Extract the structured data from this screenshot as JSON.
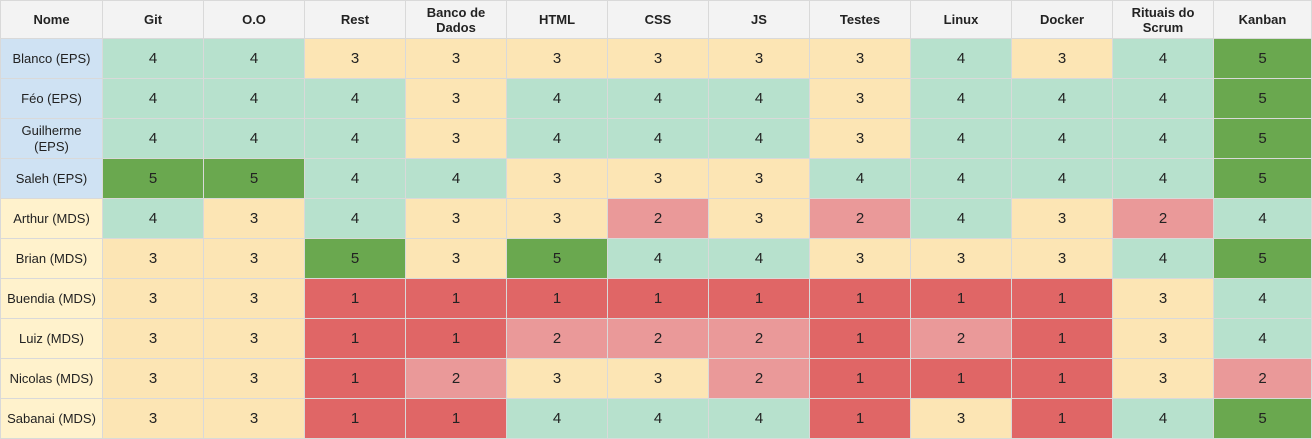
{
  "headers": [
    "Nome",
    "Git",
    "O.O",
    "Rest",
    "Banco de Dados",
    "HTML",
    "CSS",
    "JS",
    "Testes",
    "Linux",
    "Docker",
    "Rituais do Scrum",
    "Kanban"
  ],
  "colors": {
    "eps_name": "#cfe2f3",
    "mds_name": "#fff2cc",
    "1": "#e06666",
    "2": "#ea9999",
    "3": "#fce5b4",
    "4": "#b7e1cd",
    "5": "#6aa84f"
  },
  "rows": [
    {
      "name": "Blanco (EPS)",
      "group": "eps",
      "values": [
        4,
        4,
        3,
        3,
        3,
        3,
        3,
        3,
        4,
        3,
        4,
        5
      ]
    },
    {
      "name": "Féo (EPS)",
      "group": "eps",
      "values": [
        4,
        4,
        4,
        3,
        4,
        4,
        4,
        3,
        4,
        4,
        4,
        5
      ]
    },
    {
      "name": "Guilherme (EPS)",
      "group": "eps",
      "values": [
        4,
        4,
        4,
        3,
        4,
        4,
        4,
        3,
        4,
        4,
        4,
        5
      ]
    },
    {
      "name": "Saleh (EPS)",
      "group": "eps",
      "values": [
        5,
        5,
        4,
        4,
        3,
        3,
        3,
        4,
        4,
        4,
        4,
        5
      ]
    },
    {
      "name": "Arthur (MDS)",
      "group": "mds",
      "values": [
        4,
        3,
        4,
        3,
        3,
        2,
        3,
        2,
        4,
        3,
        2,
        4
      ]
    },
    {
      "name": "Brian (MDS)",
      "group": "mds",
      "values": [
        3,
        3,
        5,
        3,
        5,
        4,
        4,
        3,
        3,
        3,
        4,
        5
      ]
    },
    {
      "name": "Buendia (MDS)",
      "group": "mds",
      "values": [
        3,
        3,
        1,
        1,
        1,
        1,
        1,
        1,
        1,
        1,
        3,
        4
      ]
    },
    {
      "name": "Luiz (MDS)",
      "group": "mds",
      "values": [
        3,
        3,
        1,
        1,
        2,
        2,
        2,
        1,
        2,
        1,
        3,
        4
      ]
    },
    {
      "name": "Nicolas (MDS)",
      "group": "mds",
      "values": [
        3,
        3,
        1,
        2,
        3,
        3,
        2,
        1,
        1,
        1,
        3,
        2
      ]
    },
    {
      "name": "Sabanai (MDS)",
      "group": "mds",
      "values": [
        3,
        3,
        1,
        1,
        4,
        4,
        4,
        1,
        3,
        1,
        4,
        5
      ]
    }
  ]
}
